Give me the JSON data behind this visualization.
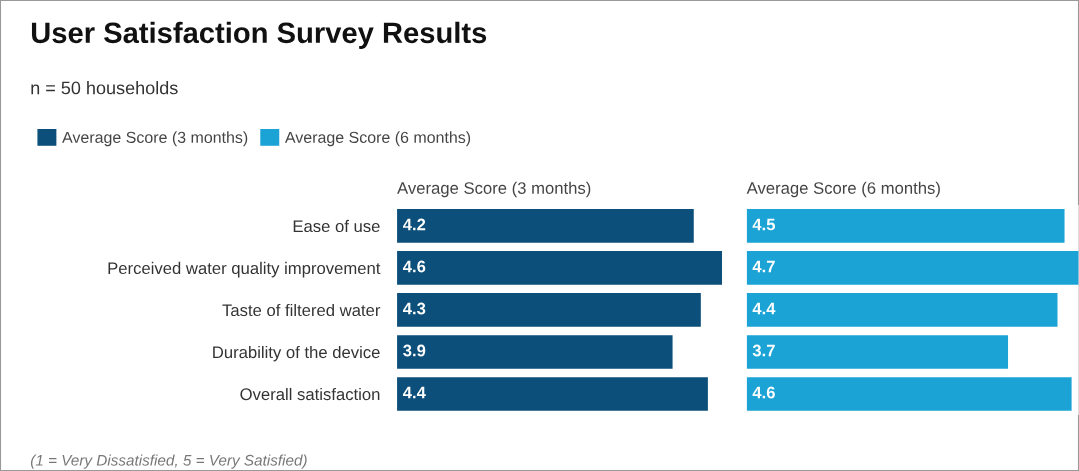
{
  "chart_data": [
    {
      "type": "bar",
      "orientation": "horizontal",
      "title": "User Satisfaction Survey Results",
      "subtitle": "n = 50 households",
      "annotations": [
        "(1 = Very Dissatisfied, 5 = Very Satisfied)"
      ],
      "legend": "top left",
      "tick_labels": "y",
      "data_labels": true,
      "categories": [
        "Ease of use",
        "Perceived water quality improvement",
        "Taste of filtered water",
        "Durability of the device",
        "Overall satisfaction"
      ],
      "series": [
        {
          "name": "Average Score (3 months)",
          "color": "#0b4f7a",
          "values": [
            4.2,
            4.6,
            4.3,
            3.9,
            4.4
          ]
        }
      ]
    },
    {
      "type": "bar",
      "orientation": "horizontal",
      "tick_labels": false,
      "data_labels": true,
      "categories": [
        null,
        null,
        null,
        null,
        null
      ],
      "series": [
        {
          "name": "Average Score (6 months)",
          "color": "#1ba3d6",
          "values": [
            4.5,
            4.7,
            4.4,
            3.7,
            4.6
          ]
        }
      ]
    }
  ]
}
